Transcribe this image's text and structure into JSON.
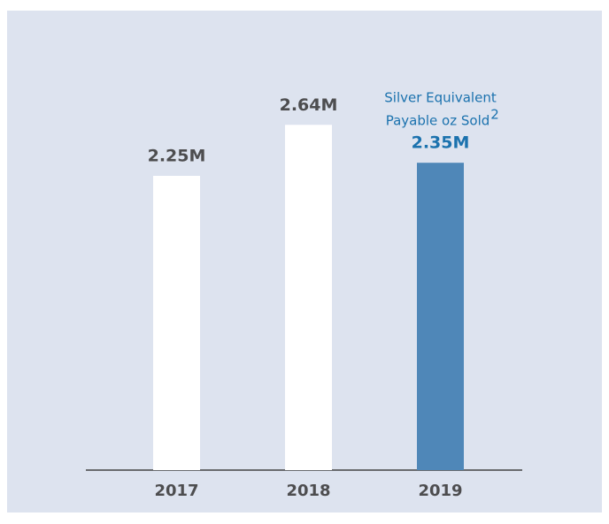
{
  "chart_data": {
    "type": "bar",
    "categories": [
      "2017",
      "2018",
      "2019"
    ],
    "values": [
      2250000,
      2640000,
      2350000
    ],
    "value_labels": [
      "2.25M",
      "2.64M",
      "2.35M"
    ],
    "colors": [
      "#ffffff",
      "#ffffff",
      "#4f87b8"
    ],
    "label_colors": [
      "#4d4d4f",
      "#4d4d4f",
      "#1b72ae"
    ],
    "ylim": [
      0,
      3000000
    ],
    "annotation": [
      "Silver Equivalent",
      "Payable oz Sold"
    ],
    "annotation_superscript": "2"
  }
}
